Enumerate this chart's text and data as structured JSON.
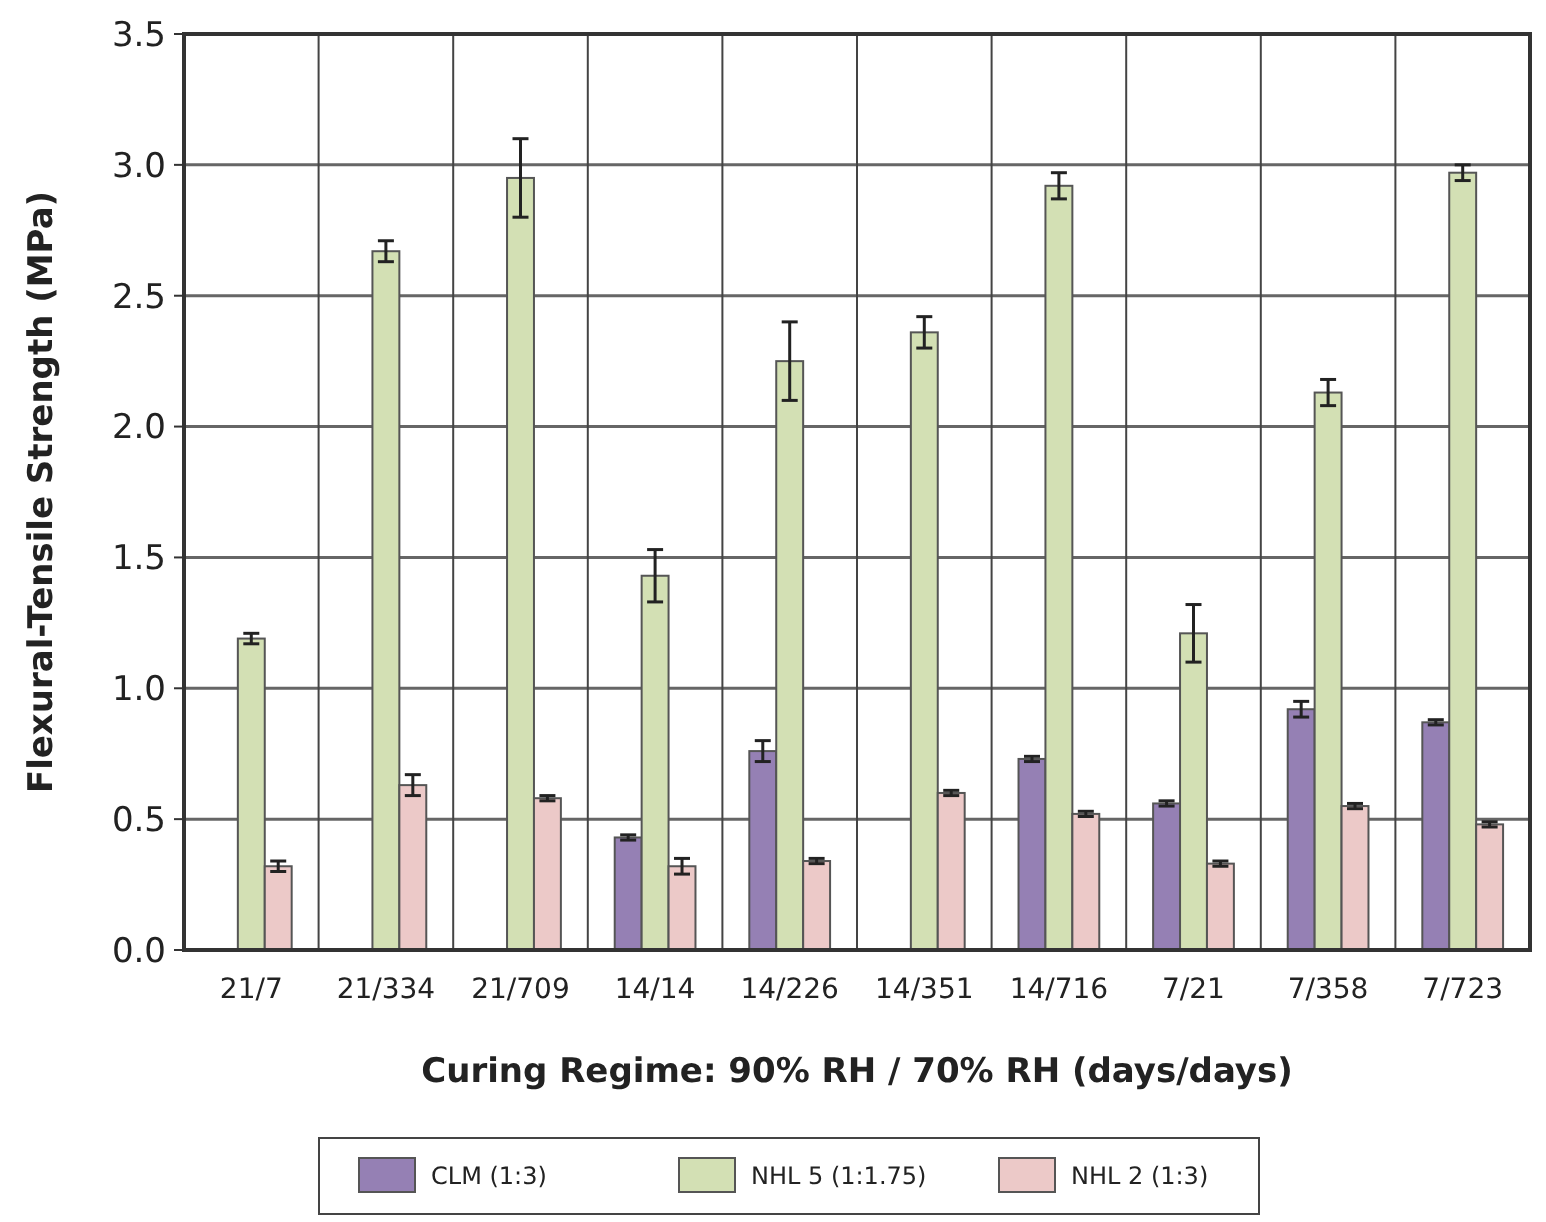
{
  "chart_data": {
    "type": "bar",
    "xlabel": "Curing Regime: 90% RH / 70% RH (days/days)",
    "ylabel": "Flexural-Tensile Strength (MPa)",
    "categories": [
      "21/7",
      "21/334",
      "21/709",
      "14/14",
      "14/226",
      "14/351",
      "14/716",
      "7/21",
      "7/358",
      "7/723"
    ],
    "series": [
      {
        "name": "CLM (1:3)",
        "color": "#9580b4",
        "values": [
          null,
          null,
          null,
          0.43,
          0.76,
          null,
          0.73,
          0.56,
          0.92,
          0.87
        ],
        "errors": [
          null,
          null,
          null,
          0.01,
          0.04,
          null,
          0.01,
          0.01,
          0.03,
          0.01
        ]
      },
      {
        "name": "NHL 5 (1:1.75)",
        "color": "#d3e0b4",
        "values": [
          1.19,
          2.67,
          2.95,
          1.43,
          2.25,
          2.36,
          2.92,
          1.21,
          2.13,
          2.97
        ],
        "errors": [
          0.02,
          0.04,
          0.15,
          0.1,
          0.15,
          0.06,
          0.05,
          0.11,
          0.05,
          0.03
        ]
      },
      {
        "name": "NHL 2 (1:3)",
        "color": "#ecc9c8",
        "values": [
          0.32,
          0.63,
          0.58,
          0.32,
          0.34,
          0.6,
          0.52,
          0.33,
          0.55,
          0.48
        ],
        "errors": [
          0.02,
          0.04,
          0.01,
          0.03,
          0.01,
          0.01,
          0.01,
          0.01,
          0.01,
          0.01
        ]
      }
    ],
    "ylim": [
      0,
      3.5
    ],
    "yticks": [
      {
        "value": 0,
        "label": "0.0"
      },
      {
        "value": 0.5,
        "label": "0.5"
      },
      {
        "value": 1,
        "label": "1.0"
      },
      {
        "value": 1.5,
        "label": "1.5"
      },
      {
        "value": 2,
        "label": "2.0"
      },
      {
        "value": 2.5,
        "label": "2.5"
      },
      {
        "value": 3,
        "label": "3.0"
      },
      {
        "value": 3.5,
        "label": "3.5"
      }
    ],
    "grid": true,
    "legend": "bottom"
  }
}
